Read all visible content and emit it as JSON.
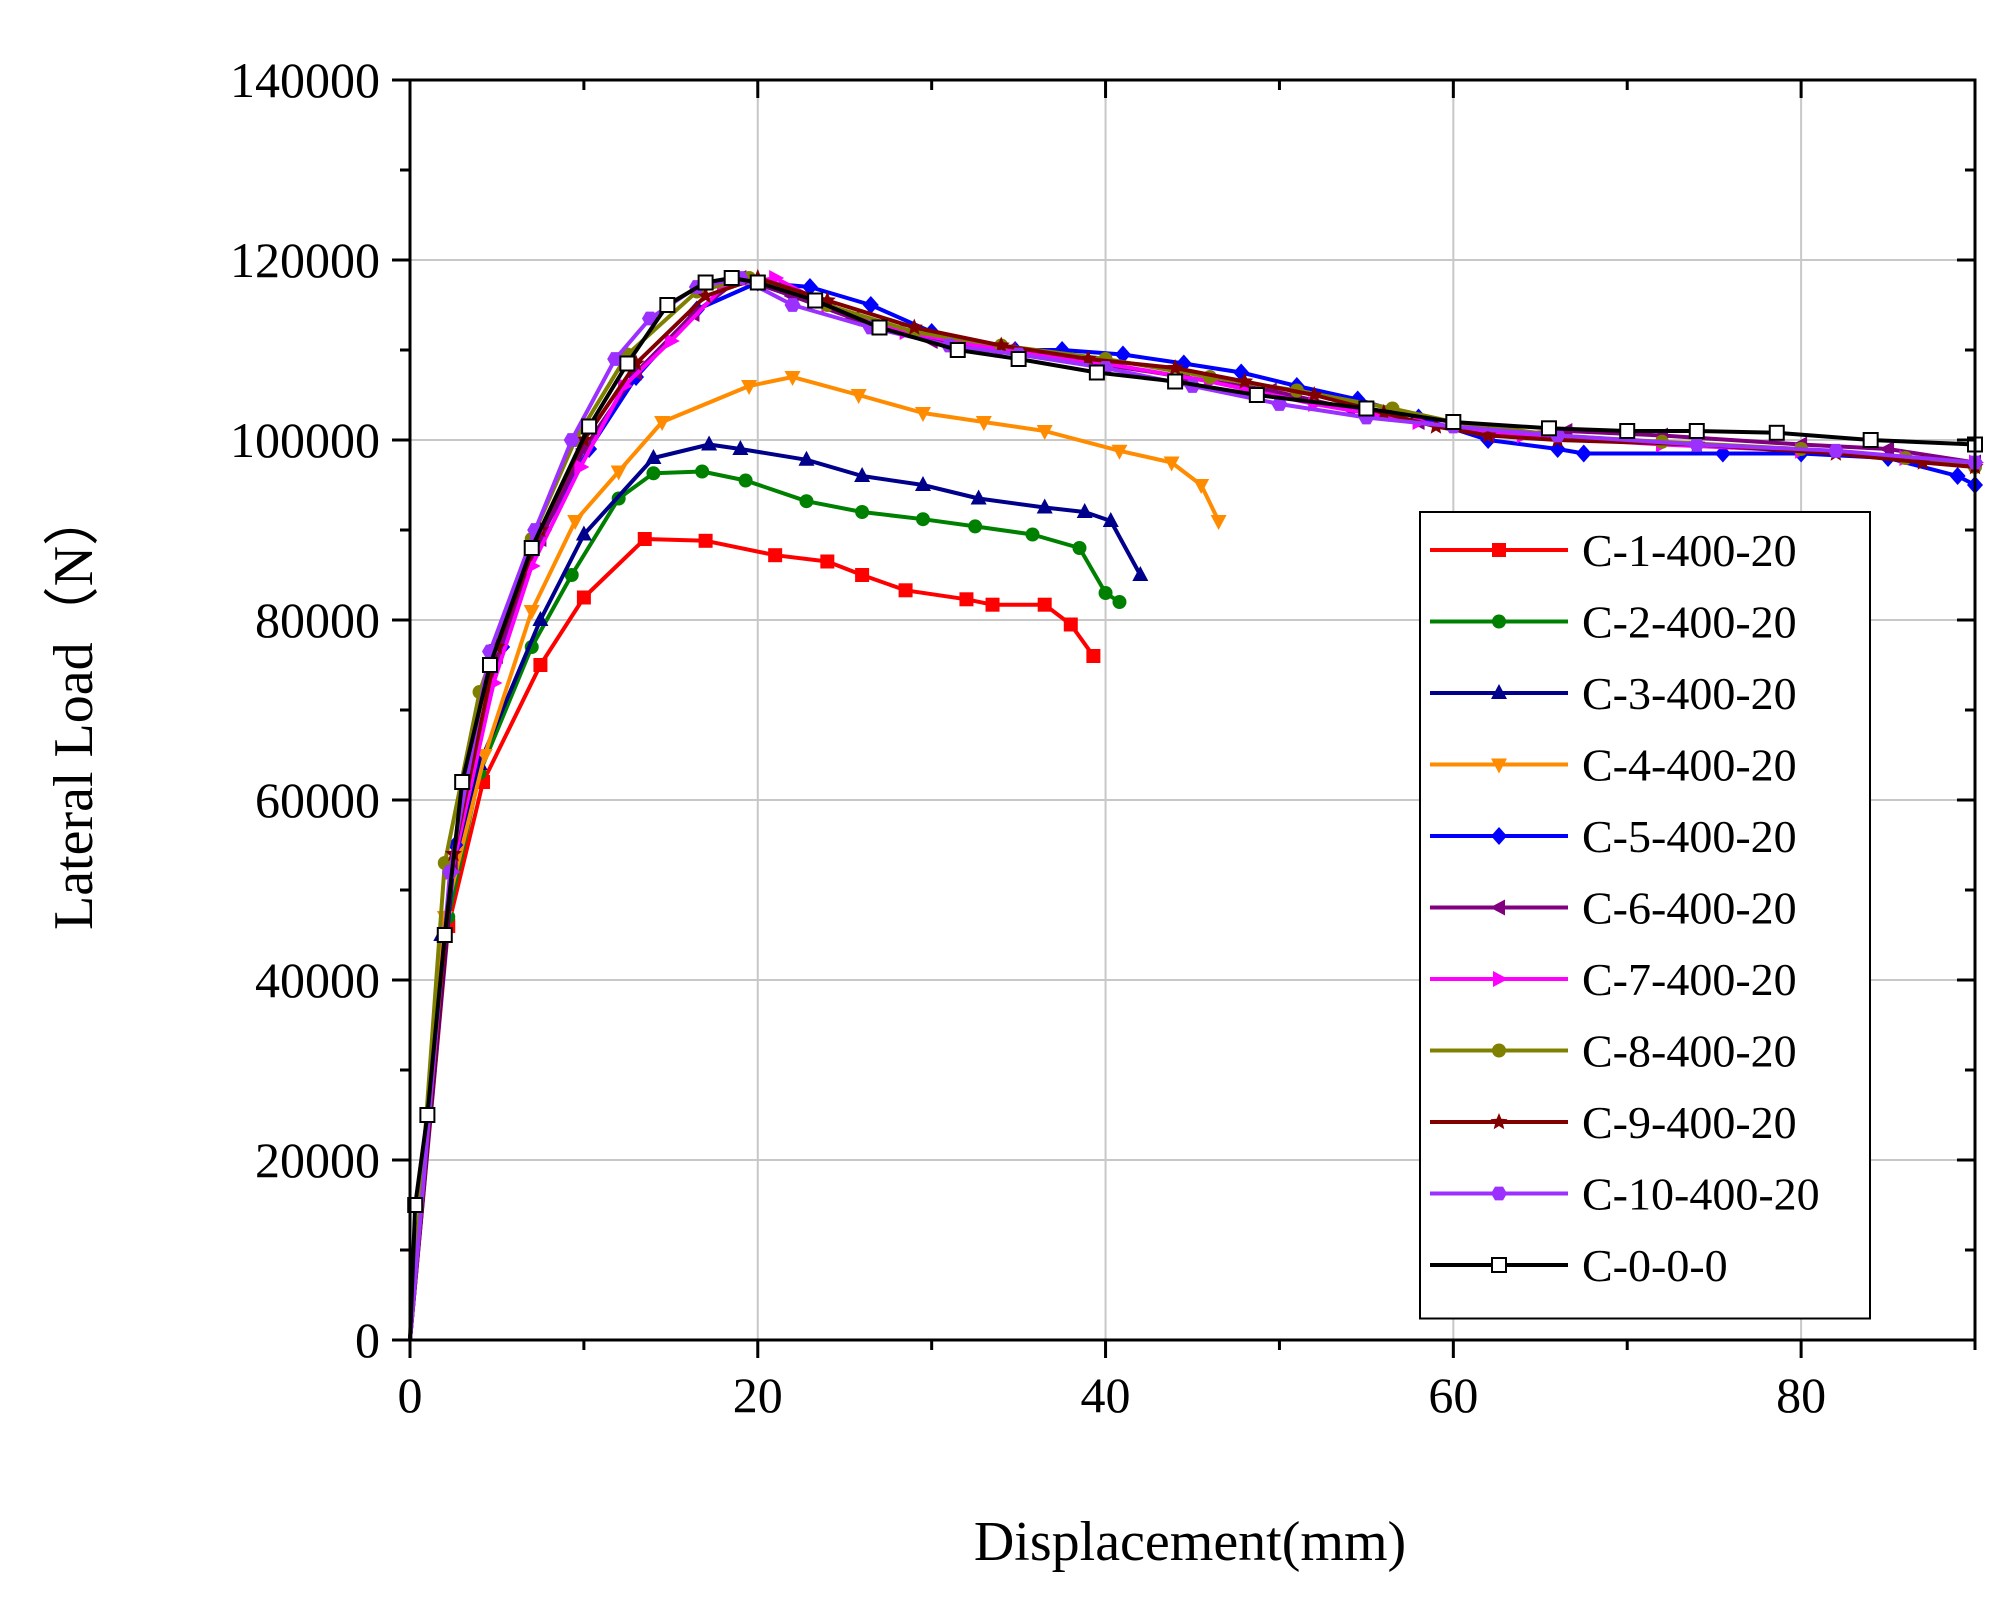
{
  "chart_data": {
    "type": "line",
    "title": "",
    "xlabel": "Displacement(mm)",
    "ylabel": "Lateral Load（N）",
    "xlim": [
      0,
      90
    ],
    "ylim": [
      0,
      140000
    ],
    "x_ticks": [
      0,
      20,
      40,
      60,
      80
    ],
    "x_tick_labels": [
      "0",
      "20",
      "40",
      "60",
      "80"
    ],
    "y_ticks": [
      0,
      20000,
      40000,
      60000,
      80000,
      100000,
      120000,
      140000
    ],
    "y_tick_labels": [
      "0",
      "20000",
      "40000",
      "60000",
      "80000",
      "100000",
      "120000",
      "140000"
    ],
    "grid": true,
    "legend_position": "lower-right",
    "series": [
      {
        "name": "C-1-400-20",
        "color": "#ff0000",
        "marker": "square",
        "x": [
          0,
          2.2,
          4.2,
          7.5,
          10,
          13.5,
          17,
          21,
          24,
          26,
          28.5,
          32,
          33.5,
          36.5,
          38,
          39.3
        ],
        "y": [
          0,
          46000,
          62000,
          75000,
          82500,
          89000,
          88800,
          87200,
          86500,
          85000,
          83300,
          82300,
          81700,
          81700,
          79500,
          76000
        ]
      },
      {
        "name": "C-2-400-20",
        "color": "#008000",
        "marker": "circle",
        "x": [
          0,
          2.2,
          4,
          7,
          9.3,
          12,
          14,
          16.8,
          19.3,
          22.8,
          26,
          29.5,
          32.5,
          35.8,
          38.5,
          40,
          40.8
        ],
        "y": [
          0,
          47000,
          63000,
          77000,
          85000,
          93500,
          96300,
          96500,
          95500,
          93200,
          92000,
          91200,
          90400,
          89500,
          88000,
          83000,
          82000
        ]
      },
      {
        "name": "C-3-400-20",
        "color": "#00008b",
        "marker": "triangle-up",
        "x": [
          0,
          1.8,
          4,
          7.5,
          10,
          14,
          17.2,
          19,
          22.8,
          26,
          29.5,
          32.7,
          36.5,
          38.8,
          40.3,
          42
        ],
        "y": [
          0,
          45000,
          64000,
          80000,
          89500,
          98000,
          99500,
          99000,
          97800,
          96000,
          95000,
          93500,
          92500,
          92000,
          91000,
          85000
        ]
      },
      {
        "name": "C-4-400-20",
        "color": "#ff8c00",
        "marker": "triangle-down",
        "x": [
          0,
          2,
          4.3,
          7,
          9.5,
          12,
          14.5,
          19.5,
          22,
          25.8,
          29.5,
          33,
          36.5,
          40.8,
          43.8,
          45.5,
          46.5
        ],
        "y": [
          0,
          47000,
          65000,
          81000,
          91000,
          96500,
          102000,
          106000,
          107000,
          105000,
          103000,
          102000,
          101000,
          98800,
          97500,
          95000,
          91000
        ]
      },
      {
        "name": "C-5-400-20",
        "color": "#0000ff",
        "marker": "diamond",
        "x": [
          0,
          2.6,
          5.3,
          7.7,
          10.3,
          13,
          16.5,
          20,
          23,
          26.5,
          30,
          34.8,
          37.5,
          41,
          44.5,
          47.8,
          51,
          54.5,
          58,
          62,
          66,
          67.5,
          75.5,
          80,
          85,
          89,
          90
        ],
        "y": [
          0,
          55000,
          77000,
          90000,
          99000,
          107000,
          114500,
          117500,
          117000,
          115000,
          112000,
          110000,
          110000,
          109500,
          108500,
          107500,
          106000,
          104500,
          102500,
          100000,
          99000,
          98500,
          98500,
          98500,
          98000,
          96000,
          95000
        ]
      },
      {
        "name": "C-6-400-20",
        "color": "#800080",
        "marker": "triangle-left",
        "x": [
          0,
          2.4,
          5,
          7.5,
          10,
          13,
          16.3,
          19,
          22,
          25.5,
          30,
          34.5,
          39.5,
          44.5,
          49.5,
          54,
          58,
          62,
          66.5,
          72,
          80,
          85,
          90
        ],
        "y": [
          0,
          53000,
          76000,
          89000,
          99000,
          107500,
          114000,
          118000,
          116000,
          113500,
          111000,
          110000,
          108500,
          107000,
          105500,
          103500,
          102000,
          100500,
          101000,
          100500,
          99500,
          99000,
          97500
        ]
      },
      {
        "name": "C-7-400-20",
        "color": "#ff00ff",
        "marker": "triangle-right",
        "x": [
          0,
          2.4,
          4.8,
          7,
          9.8,
          12.3,
          15,
          18,
          21,
          24,
          28.5,
          34,
          40,
          46,
          52,
          58,
          64,
          72,
          80,
          86,
          90
        ],
        "y": [
          0,
          52000,
          73000,
          86000,
          97000,
          106000,
          111000,
          117000,
          118000,
          115000,
          112000,
          110000,
          108500,
          106500,
          104000,
          102000,
          100500,
          99500,
          98800,
          98000,
          97500
        ]
      },
      {
        "name": "C-8-400-20",
        "color": "#808000",
        "marker": "circle",
        "x": [
          0,
          2,
          4,
          7,
          9.5,
          12.5,
          16.5,
          19.5,
          24,
          29,
          34,
          40,
          46,
          51,
          56.5,
          60,
          66,
          72,
          80,
          86,
          90
        ],
        "y": [
          0,
          53000,
          72000,
          89000,
          100000,
          109500,
          116500,
          118000,
          115000,
          112000,
          110500,
          109000,
          107000,
          105500,
          103500,
          102000,
          100500,
          99800,
          99000,
          98000,
          97000
        ]
      },
      {
        "name": "C-9-400-20",
        "color": "#800000",
        "marker": "star",
        "x": [
          0,
          2.5,
          5,
          7.5,
          10,
          13,
          17,
          20,
          24,
          29,
          34,
          39,
          44,
          48,
          52,
          56,
          59,
          62,
          66,
          74,
          82,
          87,
          90
        ],
        "y": [
          0,
          54000,
          77000,
          90000,
          100000,
          108500,
          116000,
          118000,
          115500,
          112500,
          110500,
          109000,
          108000,
          106500,
          105000,
          103000,
          101500,
          100500,
          100000,
          99500,
          98500,
          97500,
          97000
        ]
      },
      {
        "name": "C-10-400-20",
        "color": "#9b30ff",
        "marker": "hexagon",
        "x": [
          0,
          2.3,
          4.6,
          7.2,
          9.3,
          11.8,
          13.8,
          16.5,
          19,
          22,
          26.5,
          31,
          35,
          40,
          45,
          50,
          55,
          60,
          66,
          74,
          82,
          90
        ],
        "y": [
          0,
          52000,
          76500,
          90000,
          100000,
          109000,
          113500,
          117000,
          118000,
          115000,
          112500,
          110500,
          109500,
          108000,
          106000,
          104000,
          102500,
          101500,
          100500,
          99500,
          98800,
          97500
        ]
      },
      {
        "name": "C-0-0-0",
        "color": "#000000",
        "marker": "square-open",
        "x": [
          0,
          0.3,
          1,
          2,
          3,
          4.6,
          7,
          10.3,
          12.5,
          14.8,
          17,
          18.5,
          20,
          23.3,
          27,
          31.5,
          35,
          39.5,
          44,
          48.7,
          55,
          60,
          65.5,
          70,
          74,
          78.6,
          84,
          90
        ],
        "y": [
          0,
          15000,
          25000,
          45000,
          62000,
          75000,
          88000,
          101500,
          108500,
          115000,
          117500,
          118000,
          117500,
          115500,
          112500,
          110000,
          109000,
          107500,
          106500,
          105000,
          103500,
          102000,
          101300,
          101000,
          101000,
          100800,
          100000,
          99500
        ]
      }
    ]
  }
}
